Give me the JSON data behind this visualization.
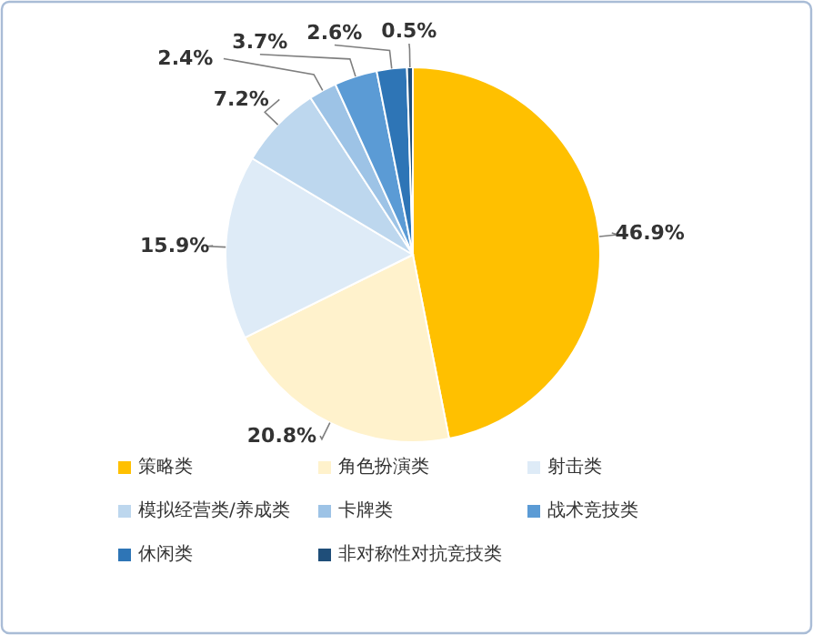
{
  "chart_data": {
    "type": "pie",
    "categories": [
      "策略类",
      "角色扮演类",
      "射击类",
      "模拟经营类/养成类",
      "卡牌类",
      "战术竞技类",
      "休闲类",
      "非对称性对抗竞技类"
    ],
    "values": [
      46.9,
      20.8,
      15.9,
      7.2,
      2.4,
      3.7,
      2.6,
      0.5
    ],
    "value_labels": [
      "46.9%",
      "20.8%",
      "15.9%",
      "7.2%",
      "2.4%",
      "3.7%",
      "2.6%",
      "0.5%"
    ],
    "colors": [
      "#ffc000",
      "#fff2cc",
      "#deebf7",
      "#bdd7ee",
      "#9dc3e6",
      "#5b9bd5",
      "#2e75b6",
      "#1f4e79"
    ],
    "legend": "bottom"
  }
}
